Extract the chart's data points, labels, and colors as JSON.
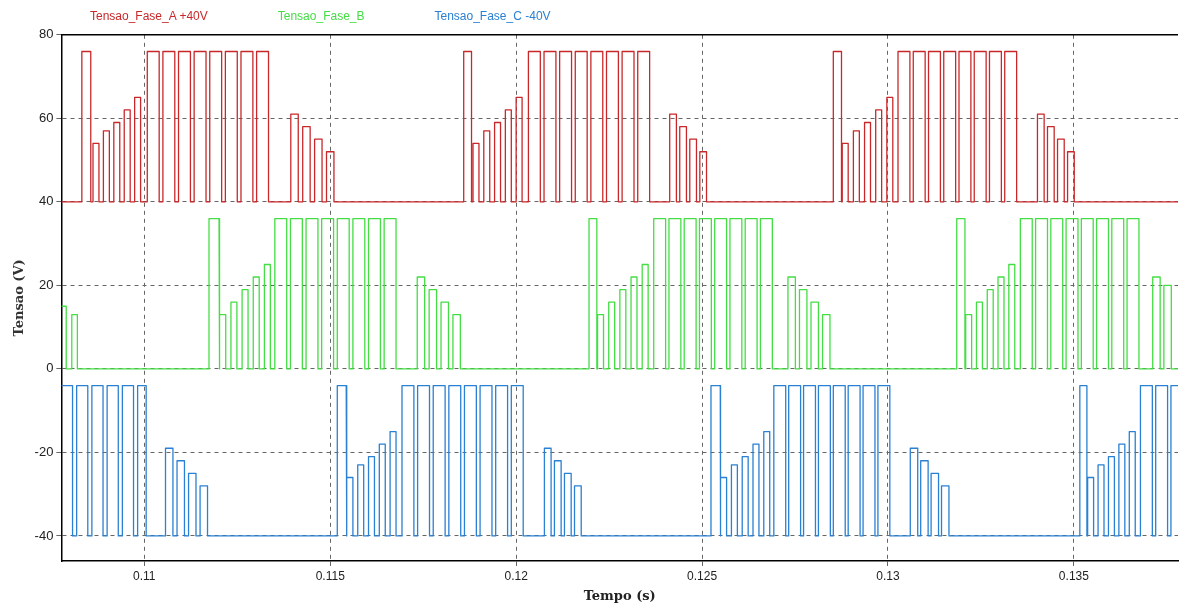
{
  "chart_data": {
    "type": "line",
    "xlabel": "Tempo (s)",
    "ylabel": "Tensao (V)",
    "xlim": [
      0.10777,
      0.1378
    ],
    "xticks": [
      0.11,
      0.115,
      0.12,
      0.125,
      0.13,
      0.135
    ],
    "ylim": [
      -46,
      80
    ],
    "yticks": [
      -40,
      -20,
      0,
      20,
      40,
      60,
      80
    ],
    "grid": true,
    "legend": "top left",
    "series": [
      {
        "name": "Tensao_Fase_A +40V",
        "color": "#c8282a",
        "x": [
          0.10777,
          0.10832,
          0.10832,
          0.10856,
          0.10856,
          0.10862,
          0.10862,
          0.10878,
          0.10878,
          0.1089,
          0.1089,
          0.10906,
          0.10906,
          0.10918,
          0.10918,
          0.10934,
          0.10934,
          0.10946,
          0.10946,
          0.10962,
          0.10962,
          0.10974,
          0.10974,
          0.1099,
          0.1099,
          0.11008,
          0.11008,
          0.1104,
          0.1104,
          0.1105,
          0.1105,
          0.11082,
          0.11082,
          0.11092,
          0.11092,
          0.11124,
          0.11124,
          0.11134,
          0.11134,
          0.11166,
          0.11166,
          0.11176,
          0.11176,
          0.11208,
          0.11208,
          0.11218,
          0.11218,
          0.1125,
          0.1125,
          0.1126,
          0.1126,
          0.11292,
          0.11292,
          0.11302,
          0.11302,
          0.11334,
          0.11334,
          0.11394,
          0.11394,
          0.11414,
          0.11414,
          0.11426,
          0.11426,
          0.11446,
          0.11446,
          0.11458,
          0.11458,
          0.11478,
          0.11478,
          0.1149,
          0.1149,
          0.1151,
          0.1151,
          0.11859,
          0.11859,
          0.1188,
          0.1188,
          0.11884,
          0.11884,
          0.119,
          0.119,
          0.11913,
          0.11913,
          0.11929,
          0.11929,
          0.11942,
          0.11942,
          0.11958,
          0.11958,
          0.11971,
          0.11971,
          0.11987,
          0.11987,
          0.12,
          0.12,
          0.12016,
          0.12016,
          0.12033,
          0.12033,
          0.12065,
          0.12065,
          0.12075,
          0.12075,
          0.12107,
          0.12107,
          0.12117,
          0.12117,
          0.12149,
          0.12149,
          0.12159,
          0.12159,
          0.12191,
          0.12191,
          0.12201,
          0.12201,
          0.12233,
          0.12233,
          0.12243,
          0.12243,
          0.12275,
          0.12275,
          0.12285,
          0.12285,
          0.12317,
          0.12317,
          0.12327,
          0.12327,
          0.12359,
          0.12359,
          0.12413,
          0.12413,
          0.12431,
          0.12431,
          0.1244,
          0.1244,
          0.12458,
          0.12458,
          0.12467,
          0.12467,
          0.12485,
          0.12485,
          0.12494,
          0.12494,
          0.12512,
          0.12512,
          0.12853,
          0.12853,
          0.12875,
          0.12875,
          0.12877,
          0.12877,
          0.12893,
          0.12893,
          0.12907,
          0.12907,
          0.12923,
          0.12923,
          0.12937,
          0.12937,
          0.12953,
          0.12953,
          0.12967,
          0.12967,
          0.12983,
          0.12983,
          0.12997,
          0.12997,
          0.13013,
          0.13013,
          0.13027,
          0.13027,
          0.13059,
          0.13059,
          0.13068,
          0.13068,
          0.131,
          0.131,
          0.13109,
          0.13109,
          0.13141,
          0.13141,
          0.1315,
          0.1315,
          0.13182,
          0.13182,
          0.13191,
          0.13191,
          0.13223,
          0.13223,
          0.13232,
          0.13232,
          0.13264,
          0.13264,
          0.13273,
          0.13273,
          0.13305,
          0.13305,
          0.13314,
          0.13314,
          0.13346,
          0.13346,
          0.13402,
          0.13402,
          0.1342,
          0.1342,
          0.13429,
          0.13429,
          0.13447,
          0.13447,
          0.13456,
          0.13456,
          0.13474,
          0.13474,
          0.13483,
          0.13483,
          0.13501,
          0.13501,
          0.1378
        ],
        "values": [
          40,
          40,
          76,
          76,
          40,
          40,
          54,
          54,
          40,
          40,
          57,
          57,
          40,
          40,
          59,
          59,
          40,
          40,
          62,
          62,
          40,
          40,
          65,
          65,
          40,
          40,
          76,
          76,
          40,
          40,
          76,
          76,
          40,
          40,
          76,
          76,
          40,
          40,
          76,
          76,
          40,
          40,
          76,
          76,
          40,
          40,
          76,
          76,
          40,
          40,
          76,
          76,
          40,
          40,
          76,
          76,
          40,
          40,
          61,
          61,
          40,
          40,
          58,
          58,
          40,
          40,
          55,
          55,
          40,
          40,
          52,
          52,
          40,
          40,
          76,
          76,
          40,
          40,
          54,
          54,
          40,
          40,
          57,
          57,
          40,
          40,
          59,
          59,
          40,
          40,
          62,
          62,
          40,
          40,
          65,
          65,
          40,
          40,
          76,
          76,
          40,
          40,
          76,
          76,
          40,
          40,
          76,
          76,
          40,
          40,
          76,
          76,
          40,
          40,
          76,
          76,
          40,
          40,
          76,
          76,
          40,
          40,
          76,
          76,
          40,
          40,
          76,
          76,
          40,
          40,
          61,
          61,
          40,
          40,
          58,
          58,
          40,
          40,
          55,
          55,
          40,
          40,
          52,
          52,
          40,
          40,
          76,
          76,
          40,
          40,
          54,
          54,
          40,
          40,
          57,
          57,
          40,
          40,
          59,
          59,
          40,
          40,
          62,
          62,
          40,
          40,
          65,
          65,
          40,
          40,
          76,
          76,
          40,
          40,
          76,
          76,
          40,
          40,
          76,
          76,
          40,
          40,
          76,
          76,
          40,
          40,
          76,
          76,
          40,
          40,
          76,
          76,
          40,
          40,
          76,
          76,
          40,
          40,
          76,
          76,
          40,
          40,
          61,
          61,
          40,
          40,
          58,
          58,
          40,
          40,
          55,
          55,
          40,
          40,
          52,
          52,
          40,
          40
        ]
      },
      {
        "name": "Tensao_Fase_B",
        "color": "#44dd44",
        "x": [
          0.10777,
          0.1079,
          0.1079,
          0.10805,
          0.10805,
          0.1082,
          0.1082,
          0.11174,
          0.11174,
          0.11201,
          0.11201,
          0.11203,
          0.11203,
          0.11219,
          0.11219,
          0.11233,
          0.11233,
          0.11249,
          0.11249,
          0.11263,
          0.11263,
          0.11279,
          0.11279,
          0.11293,
          0.11293,
          0.11309,
          0.11309,
          0.11323,
          0.11323,
          0.11339,
          0.11339,
          0.11351,
          0.11351,
          0.11383,
          0.11383,
          0.11393,
          0.11393,
          0.11425,
          0.11425,
          0.11435,
          0.11435,
          0.11467,
          0.11467,
          0.11477,
          0.11477,
          0.11509,
          0.11509,
          0.11519,
          0.11519,
          0.11551,
          0.11551,
          0.11561,
          0.11561,
          0.11593,
          0.11593,
          0.11603,
          0.11603,
          0.11635,
          0.11635,
          0.11645,
          0.11645,
          0.11677,
          0.11677,
          0.11734,
          0.11734,
          0.11754,
          0.11754,
          0.11766,
          0.11766,
          0.11786,
          0.11786,
          0.11798,
          0.11798,
          0.11818,
          0.11818,
          0.1183,
          0.1183,
          0.1185,
          0.1185,
          0.12196,
          0.12196,
          0.12217,
          0.12217,
          0.12219,
          0.12219,
          0.12235,
          0.12235,
          0.12249,
          0.12249,
          0.12265,
          0.12265,
          0.12279,
          0.12279,
          0.12295,
          0.12295,
          0.12309,
          0.12309,
          0.12325,
          0.12325,
          0.12339,
          0.12339,
          0.12355,
          0.12355,
          0.1237,
          0.1237,
          0.12402,
          0.12402,
          0.12411,
          0.12411,
          0.12443,
          0.12443,
          0.12452,
          0.12452,
          0.12484,
          0.12484,
          0.12493,
          0.12493,
          0.12525,
          0.12525,
          0.12534,
          0.12534,
          0.12566,
          0.12566,
          0.12575,
          0.12575,
          0.12607,
          0.12607,
          0.12616,
          0.12616,
          0.12648,
          0.12648,
          0.12657,
          0.12657,
          0.12689,
          0.12689,
          0.12731,
          0.12731,
          0.12751,
          0.12751,
          0.12762,
          0.12762,
          0.12782,
          0.12782,
          0.12793,
          0.12793,
          0.12813,
          0.12813,
          0.12824,
          0.12824,
          0.12844,
          0.12844,
          0.13185,
          0.13185,
          0.13207,
          0.13207,
          0.13209,
          0.13209,
          0.13225,
          0.13225,
          0.13238,
          0.13238,
          0.13254,
          0.13254,
          0.13267,
          0.13267,
          0.13283,
          0.13283,
          0.13296,
          0.13296,
          0.13312,
          0.13312,
          0.13325,
          0.13325,
          0.13341,
          0.13341,
          0.13356,
          0.13356,
          0.13388,
          0.13388,
          0.13397,
          0.13397,
          0.13429,
          0.13429,
          0.13438,
          0.13438,
          0.1347,
          0.1347,
          0.13479,
          0.13479,
          0.13511,
          0.13511,
          0.1352,
          0.1352,
          0.13552,
          0.13552,
          0.13561,
          0.13561,
          0.13593,
          0.13593,
          0.13602,
          0.13602,
          0.13634,
          0.13634,
          0.13643,
          0.13643,
          0.13675,
          0.13675,
          0.13712,
          0.13712,
          0.13732,
          0.13732,
          0.13742,
          0.13742,
          0.13762,
          0.13762,
          0.1378
        ],
        "values": [
          15,
          15,
          0,
          0,
          13,
          13,
          0,
          0,
          36,
          36,
          0,
          0,
          13,
          13,
          0,
          0,
          16,
          16,
          0,
          0,
          19,
          19,
          0,
          0,
          22,
          22,
          0,
          0,
          25,
          25,
          0,
          0,
          36,
          36,
          0,
          0,
          36,
          36,
          0,
          0,
          36,
          36,
          0,
          0,
          36,
          36,
          0,
          0,
          36,
          36,
          0,
          0,
          36,
          36,
          0,
          0,
          36,
          36,
          0,
          0,
          36,
          36,
          0,
          0,
          22,
          22,
          0,
          0,
          19,
          19,
          0,
          0,
          16,
          16,
          0,
          0,
          13,
          13,
          0,
          0,
          36,
          36,
          0,
          0,
          13,
          13,
          0,
          0,
          16,
          16,
          0,
          0,
          19,
          19,
          0,
          0,
          22,
          22,
          0,
          0,
          25,
          25,
          0,
          0,
          36,
          36,
          0,
          0,
          36,
          36,
          0,
          0,
          36,
          36,
          0,
          0,
          36,
          36,
          0,
          0,
          36,
          36,
          0,
          0,
          36,
          36,
          0,
          0,
          36,
          36,
          0,
          0,
          36,
          36,
          0,
          0,
          22,
          22,
          0,
          0,
          19,
          19,
          0,
          0,
          16,
          16,
          0,
          0,
          13,
          13,
          0,
          0,
          36,
          36,
          0,
          0,
          13,
          13,
          0,
          0,
          16,
          16,
          0,
          0,
          19,
          19,
          0,
          0,
          22,
          22,
          0,
          0,
          25,
          25,
          0,
          0,
          36,
          36,
          0,
          0,
          36,
          36,
          0,
          0,
          36,
          36,
          0,
          0,
          36,
          36,
          0,
          0,
          36,
          36,
          0,
          0,
          36,
          36,
          0,
          0,
          36,
          36,
          0,
          0,
          36,
          36,
          0,
          0,
          22,
          22,
          0,
          0,
          20,
          20,
          0,
          0
        ]
      },
      {
        "name": "Tensao_Fase_C -40V",
        "color": "#2a80d2",
        "x": [
          0.10777,
          0.10807,
          0.10807,
          0.10818,
          0.10818,
          0.10848,
          0.10848,
          0.10859,
          0.10859,
          0.10889,
          0.10889,
          0.109,
          0.109,
          0.1093,
          0.1093,
          0.10941,
          0.10941,
          0.10971,
          0.10971,
          0.10982,
          0.10982,
          0.11005,
          0.11005,
          0.11057,
          0.11057,
          0.11077,
          0.11077,
          0.11088,
          0.11088,
          0.11108,
          0.11108,
          0.11119,
          0.11119,
          0.11139,
          0.11139,
          0.1115,
          0.1115,
          0.1117,
          0.1117,
          0.11519,
          0.11519,
          0.11543,
          0.11543,
          0.11545,
          0.11545,
          0.11561,
          0.11561,
          0.11574,
          0.11574,
          0.1159,
          0.1159,
          0.11603,
          0.11603,
          0.11619,
          0.11619,
          0.11632,
          0.11632,
          0.11648,
          0.11648,
          0.11661,
          0.11661,
          0.11677,
          0.11677,
          0.11693,
          0.11693,
          0.11725,
          0.11725,
          0.11735,
          0.11735,
          0.11767,
          0.11767,
          0.11777,
          0.11777,
          0.11809,
          0.11809,
          0.11819,
          0.11819,
          0.11851,
          0.11851,
          0.11861,
          0.11861,
          0.11893,
          0.11893,
          0.11903,
          0.11903,
          0.11935,
          0.11935,
          0.11945,
          0.11945,
          0.11977,
          0.11977,
          0.11987,
          0.11987,
          0.12019,
          0.12019,
          0.12076,
          0.12076,
          0.12094,
          0.12094,
          0.12103,
          0.12103,
          0.12121,
          0.12121,
          0.1213,
          0.1213,
          0.12148,
          0.12148,
          0.12157,
          0.12157,
          0.12175,
          0.12175,
          0.12524,
          0.12524,
          0.12549,
          0.12549,
          0.1255,
          0.1255,
          0.12566,
          0.12566,
          0.12579,
          0.12579,
          0.12595,
          0.12595,
          0.12608,
          0.12608,
          0.12624,
          0.12624,
          0.12637,
          0.12637,
          0.12653,
          0.12653,
          0.12666,
          0.12666,
          0.12682,
          0.12682,
          0.12693,
          0.12693,
          0.12725,
          0.12725,
          0.12733,
          0.12733,
          0.12765,
          0.12765,
          0.12773,
          0.12773,
          0.12805,
          0.12805,
          0.12813,
          0.12813,
          0.12845,
          0.12845,
          0.12853,
          0.12853,
          0.12885,
          0.12885,
          0.12893,
          0.12893,
          0.12925,
          0.12925,
          0.12933,
          0.12933,
          0.12965,
          0.12965,
          0.12973,
          0.12973,
          0.13005,
          0.13005,
          0.1306,
          0.1306,
          0.1308,
          0.1308,
          0.13088,
          0.13088,
          0.13108,
          0.13108,
          0.13116,
          0.13116,
          0.13136,
          0.13136,
          0.13144,
          0.13144,
          0.13164,
          0.13164,
          0.13516,
          0.13516,
          0.13535,
          0.13535,
          0.13537,
          0.13537,
          0.13553,
          0.13553,
          0.13565,
          0.13565,
          0.13581,
          0.13581,
          0.13593,
          0.13593,
          0.13609,
          0.13609,
          0.13621,
          0.13621,
          0.13637,
          0.13637,
          0.13649,
          0.13649,
          0.13665,
          0.13665,
          0.13679,
          0.13679,
          0.13711,
          0.13711,
          0.1372,
          0.1372,
          0.13752,
          0.13752,
          0.13761,
          0.13761,
          0.1378
        ],
        "values": [
          -4,
          -4,
          -40,
          -40,
          -4,
          -4,
          -40,
          -40,
          -4,
          -4,
          -40,
          -40,
          -4,
          -4,
          -40,
          -40,
          -4,
          -4,
          -40,
          -40,
          -4,
          -4,
          -40,
          -40,
          -19,
          -19,
          -40,
          -40,
          -22,
          -22,
          -40,
          -40,
          -25,
          -25,
          -40,
          -40,
          -28,
          -28,
          -40,
          -40,
          -4,
          -4,
          -40,
          -40,
          -26,
          -26,
          -40,
          -40,
          -23,
          -23,
          -40,
          -40,
          -21,
          -21,
          -40,
          -40,
          -18,
          -18,
          -40,
          -40,
          -15,
          -15,
          -40,
          -40,
          -4,
          -4,
          -40,
          -40,
          -4,
          -4,
          -40,
          -40,
          -4,
          -4,
          -40,
          -40,
          -4,
          -4,
          -40,
          -40,
          -4,
          -4,
          -40,
          -40,
          -4,
          -4,
          -40,
          -40,
          -4,
          -4,
          -40,
          -40,
          -4,
          -4,
          -40,
          -40,
          -19,
          -19,
          -40,
          -40,
          -22,
          -22,
          -40,
          -40,
          -25,
          -25,
          -40,
          -40,
          -28,
          -28,
          -40,
          -40,
          -4,
          -4,
          -40,
          -40,
          -26,
          -26,
          -40,
          -40,
          -23,
          -23,
          -40,
          -40,
          -21,
          -21,
          -40,
          -40,
          -18,
          -18,
          -40,
          -40,
          -15,
          -15,
          -40,
          -40,
          -4,
          -4,
          -40,
          -40,
          -4,
          -4,
          -40,
          -40,
          -4,
          -4,
          -40,
          -40,
          -4,
          -4,
          -40,
          -40,
          -4,
          -4,
          -40,
          -40,
          -4,
          -4,
          -40,
          -40,
          -4,
          -4,
          -40,
          -40,
          -4,
          -4,
          -40,
          -40,
          -19,
          -19,
          -40,
          -40,
          -22,
          -22,
          -40,
          -40,
          -25,
          -25,
          -40,
          -40,
          -28,
          -28,
          -40,
          -40,
          -4,
          -4,
          -40,
          -40,
          -26,
          -26,
          -40,
          -40,
          -23,
          -23,
          -40,
          -40,
          -21,
          -21,
          -40,
          -40,
          -18,
          -18,
          -40,
          -40,
          -15,
          -15,
          -40,
          -40,
          -4,
          -4,
          -40,
          -40,
          -4,
          -4,
          -40,
          -40,
          -4,
          -4
        ]
      }
    ]
  }
}
